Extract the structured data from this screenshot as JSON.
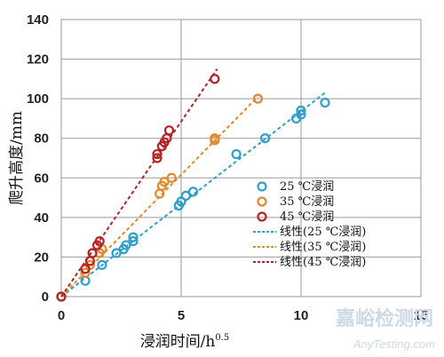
{
  "chart_data": {
    "type": "scatter",
    "xlabel": "浸润时间/h",
    "xlabel_sup": "0.5",
    "ylabel": "爬升高度/mm",
    "xlim": [
      0,
      15
    ],
    "ylim": [
      0,
      140
    ],
    "xticks": [
      0,
      5,
      10,
      15
    ],
    "yticks": [
      0,
      20,
      40,
      60,
      80,
      100,
      120,
      140
    ],
    "grid": true,
    "legend_position": "right",
    "series": [
      {
        "name": "25 ℃浸润",
        "color": "#2f9fc9",
        "points": [
          [
            0,
            0
          ],
          [
            1.0,
            8
          ],
          [
            1.7,
            16
          ],
          [
            2.3,
            22
          ],
          [
            2.6,
            24
          ],
          [
            2.7,
            26
          ],
          [
            3.0,
            28
          ],
          [
            3.0,
            30
          ],
          [
            4.9,
            46
          ],
          [
            5.0,
            48
          ],
          [
            5.2,
            51
          ],
          [
            5.5,
            53
          ],
          [
            7.3,
            72
          ],
          [
            8.5,
            80
          ],
          [
            9.8,
            90
          ],
          [
            10.0,
            92
          ],
          [
            10.0,
            94
          ],
          [
            11.0,
            98
          ]
        ]
      },
      {
        "name": "35 ℃浸润",
        "color": "#e0892e",
        "points": [
          [
            0,
            0
          ],
          [
            1.0,
            12
          ],
          [
            1.2,
            16
          ],
          [
            1.6,
            22
          ],
          [
            1.7,
            24
          ],
          [
            4.1,
            52
          ],
          [
            4.2,
            56
          ],
          [
            4.3,
            58
          ],
          [
            4.6,
            60
          ],
          [
            6.4,
            79
          ],
          [
            6.4,
            80
          ],
          [
            8.2,
            100
          ]
        ]
      },
      {
        "name": "45 ℃浸润",
        "color": "#b52327",
        "points": [
          [
            0,
            0
          ],
          [
            1.0,
            14
          ],
          [
            1.2,
            18
          ],
          [
            1.3,
            22
          ],
          [
            1.5,
            26
          ],
          [
            1.6,
            28
          ],
          [
            4.0,
            70
          ],
          [
            4.0,
            72
          ],
          [
            4.2,
            76
          ],
          [
            4.3,
            78
          ],
          [
            4.4,
            80
          ],
          [
            4.5,
            84
          ],
          [
            6.4,
            110
          ]
        ]
      }
    ],
    "fits": [
      {
        "name": "线性(25 ℃浸润)",
        "color": "#2f9fc9",
        "x": [
          0,
          11
        ],
        "y": [
          0,
          103
        ]
      },
      {
        "name": "线性(35 ℃浸润)",
        "color": "#e0892e",
        "x": [
          0,
          8.2
        ],
        "y": [
          0,
          101
        ]
      },
      {
        "name": "线性(45 ℃浸润)",
        "color": "#b52327",
        "x": [
          0,
          6.5
        ],
        "y": [
          0,
          115
        ]
      }
    ]
  },
  "watermark": {
    "main": "嘉峪检测网",
    "sub": "AnyTesting.com"
  }
}
